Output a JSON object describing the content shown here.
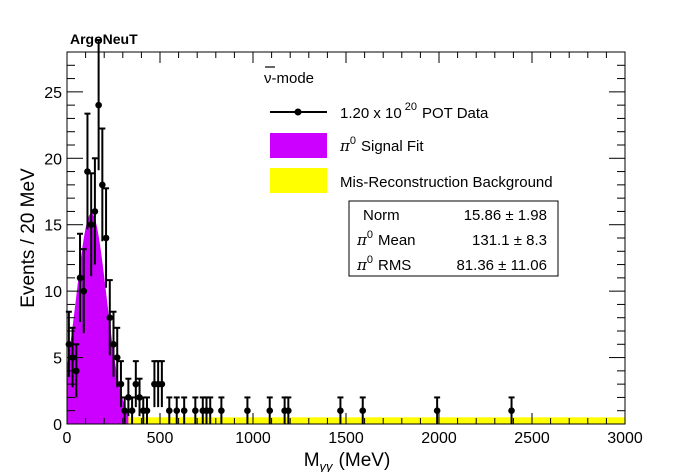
{
  "chart_data": {
    "type": "scatter",
    "title": "ArgoNeuT",
    "xlabel": "M",
    "xlabel_sub": "γγ",
    "xlabel_unit": "(MeV)",
    "ylabel": "Events / 20 MeV",
    "xlim": [
      0,
      3000
    ],
    "ylim": [
      0,
      28
    ],
    "x_ticks": [
      0,
      500,
      1000,
      1500,
      2000,
      2500,
      3000
    ],
    "y_ticks": [
      0,
      5,
      10,
      15,
      20,
      25
    ],
    "grid": false,
    "legend_position": "top-right",
    "legend": {
      "header_nu": "ν",
      "header_rest": "-mode",
      "data": {
        "label_main": "1.20 x 10",
        "label_exp": "20",
        "label_rest": "POT Data"
      },
      "signal": {
        "pi": "π",
        "sup": "0",
        "rest": "Signal Fit",
        "color": "#cc00ff"
      },
      "background": {
        "label": "Mis-Reconstruction Background",
        "color": "#ffff00"
      }
    },
    "stats": {
      "rows": [
        {
          "pi": "",
          "sup": "",
          "name": "Norm",
          "value": "15.86 ± 1.98"
        },
        {
          "pi": "π",
          "sup": "0",
          "name": "Mean",
          "value": "131.1 ± 8.3"
        },
        {
          "pi": "π",
          "sup": "0",
          "name": "RMS",
          "value": "81.36 ± 11.06"
        }
      ]
    },
    "series": [
      {
        "name": "1.20 x 10^20 POT Data",
        "type": "points_with_errors",
        "color": "#000000",
        "x": [
          10,
          30,
          50,
          70,
          90,
          110,
          130,
          150,
          170,
          190,
          210,
          230,
          250,
          270,
          290,
          310,
          330,
          350,
          370,
          390,
          410,
          430,
          470,
          490,
          510,
          550,
          590,
          630,
          690,
          730,
          750,
          770,
          830,
          970,
          1090,
          1170,
          1190,
          1470,
          1590,
          1990,
          2390
        ],
        "y": [
          6,
          5,
          4,
          11,
          10,
          19,
          15,
          16,
          24,
          18,
          14,
          8,
          6,
          5,
          3,
          1,
          2,
          1,
          3,
          2,
          1,
          1,
          3,
          3,
          3,
          1,
          1,
          1,
          1,
          1,
          1,
          1,
          1,
          1,
          1,
          1,
          1,
          1,
          1,
          1,
          1
        ],
        "err": [
          2.45,
          2.24,
          2.0,
          3.32,
          3.16,
          4.36,
          3.87,
          4.0,
          4.9,
          4.24,
          3.74,
          2.83,
          2.45,
          2.24,
          1.73,
          1.0,
          1.41,
          1.0,
          1.73,
          1.41,
          1.0,
          1.0,
          1.73,
          1.73,
          1.73,
          1.0,
          1.0,
          1.0,
          1.0,
          1.0,
          1.0,
          1.0,
          1.0,
          1.0,
          1.0,
          1.0,
          1.0,
          1.0,
          1.0,
          1.0,
          1.0
        ]
      },
      {
        "name": "π0 Signal Fit",
        "type": "gaussian_fill",
        "color": "#cc00ff",
        "norm": 15.86,
        "mean": 131.1,
        "rms": 81.36,
        "xmin": 0,
        "xmax": 330
      },
      {
        "name": "Mis-Reconstruction Background",
        "type": "flat_fill",
        "color": "#ffff00",
        "level": 0.5
      }
    ]
  }
}
